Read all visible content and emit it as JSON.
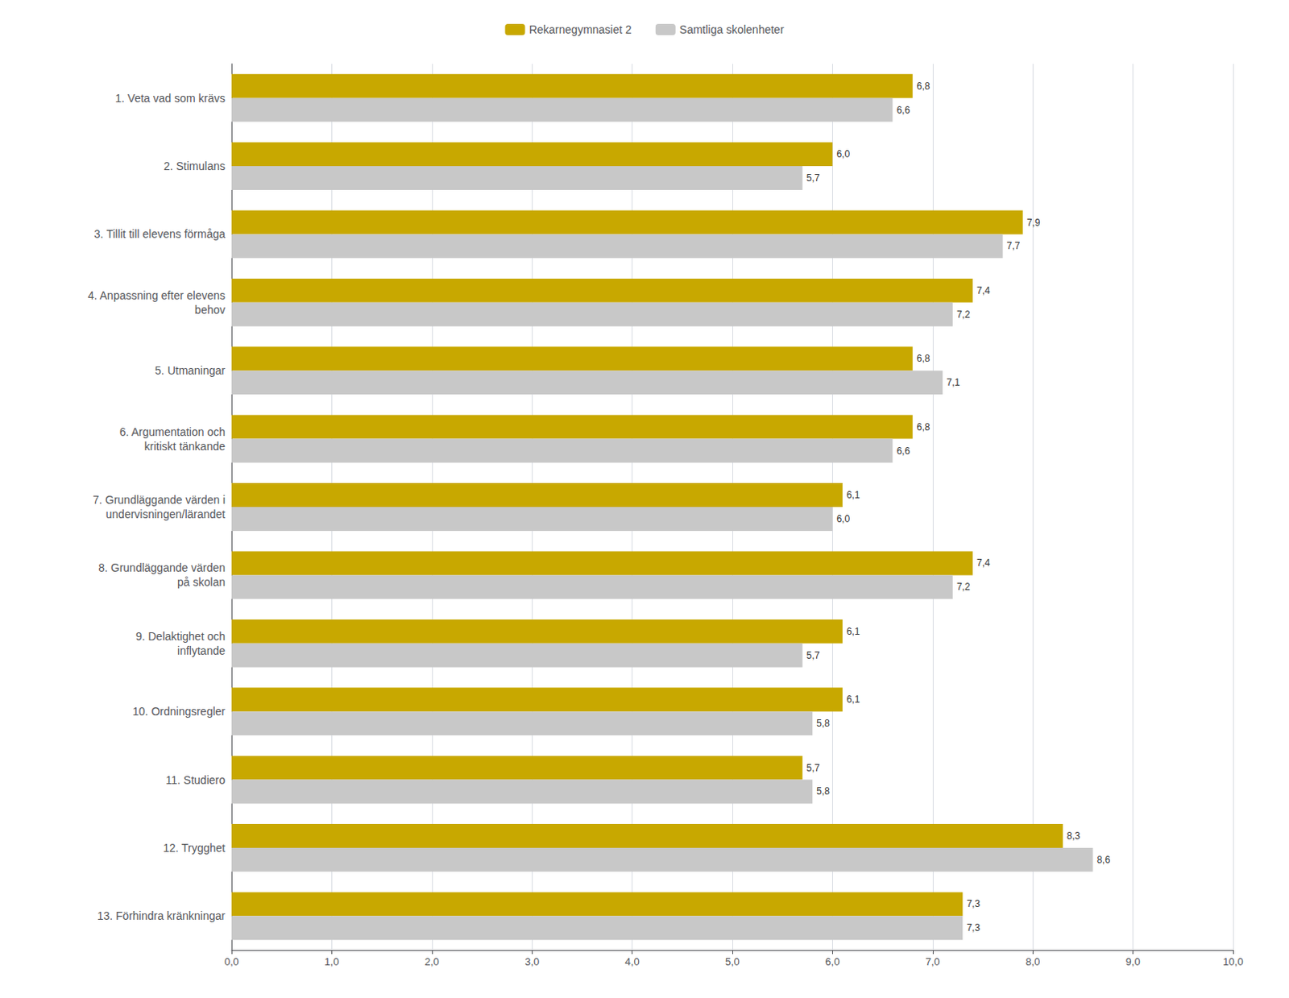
{
  "chart_data": {
    "type": "bar",
    "orientation": "horizontal",
    "categories": [
      "1. Veta vad som krävs",
      "2. Stimulans",
      "3. Tillit till elevens förmåga",
      "4. Anpassning efter elevens\nbehov",
      "5. Utmaningar",
      "6. Argumentation och\nkritiskt tänkande",
      "7. Grundläggande värden i\nundervisningen/lärandet",
      "8. Grundläggande värden\npå skolan",
      "9. Delaktighet och\ninflytande",
      "10. Ordningsregler",
      "11. Studiero",
      "12. Trygghet",
      "13. Förhindra kränkningar"
    ],
    "series": [
      {
        "name": "Rekarnegymnasiet 2",
        "color": "#C8A800",
        "values": [
          6.8,
          6.0,
          7.9,
          7.4,
          6.8,
          6.8,
          6.1,
          7.4,
          6.1,
          6.1,
          5.7,
          8.3,
          7.3
        ],
        "value_labels": [
          "6,8",
          "6,0",
          "7,9",
          "7,4",
          "6,8",
          "6,8",
          "6,1",
          "7,4",
          "6,1",
          "6,1",
          "5,7",
          "8,3",
          "7,3"
        ]
      },
      {
        "name": "Samtliga skolenheter",
        "color": "#C8C8C8",
        "values": [
          6.6,
          5.7,
          7.7,
          7.2,
          7.1,
          6.6,
          6.0,
          7.2,
          5.7,
          5.8,
          5.8,
          8.6,
          7.3
        ],
        "value_labels": [
          "6,6",
          "5,7",
          "7,7",
          "7,2",
          "7,1",
          "6,6",
          "6,0",
          "7,2",
          "5,7",
          "5,8",
          "5,8",
          "8,6",
          "7,3"
        ]
      }
    ],
    "xlim": [
      0,
      10
    ],
    "xticks": [
      {
        "value": 0,
        "label": "0,0"
      },
      {
        "value": 1,
        "label": "1,0"
      },
      {
        "value": 2,
        "label": "2,0"
      },
      {
        "value": 3,
        "label": "3,0"
      },
      {
        "value": 4,
        "label": "4,0"
      },
      {
        "value": 5,
        "label": "5,0"
      },
      {
        "value": 6,
        "label": "6,0"
      },
      {
        "value": 7,
        "label": "7,0"
      },
      {
        "value": 8,
        "label": "8,0"
      },
      {
        "value": 9,
        "label": "9,0"
      },
      {
        "value": 10,
        "label": "10,0"
      }
    ],
    "grid": true,
    "legend": "top",
    "data_labels": true
  }
}
